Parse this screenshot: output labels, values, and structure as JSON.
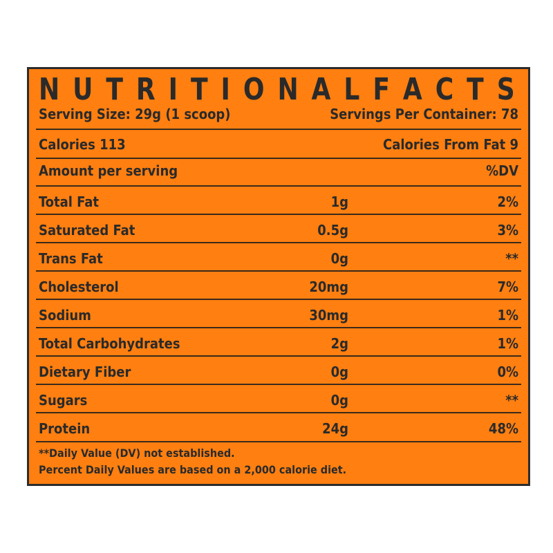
{
  "label": {
    "title_letters": [
      "N",
      "U",
      "T",
      "R",
      "I",
      "T",
      "I",
      "O",
      "N",
      "A",
      "L",
      "F",
      "A",
      "C",
      "T",
      "S"
    ],
    "serving_size": "Serving Size: 29g  (1 scoop)",
    "servings_per_container": "Servings Per Container: 78",
    "calories": "Calories 113",
    "calories_from_fat": "Calories From Fat 9",
    "amount_per_serving": "Amount per serving",
    "dv_header": "%DV",
    "rows": [
      {
        "name": "Total Fat",
        "amount": "1g",
        "dv": "2%"
      },
      {
        "name": "Saturated Fat",
        "amount": "0.5g",
        "dv": "3%"
      },
      {
        "name": "Trans Fat",
        "amount": "0g",
        "dv": "**"
      },
      {
        "name": "Cholesterol",
        "amount": "20mg",
        "dv": "7%"
      },
      {
        "name": "Sodium",
        "amount": "30mg",
        "dv": "1%"
      },
      {
        "name": "Total Carbohydrates",
        "amount": "2g",
        "dv": "1%"
      },
      {
        "name": "Dietary Fiber",
        "amount": "0g",
        "dv": "0%"
      },
      {
        "name": "Sugars",
        "amount": "0g",
        "dv": "**"
      },
      {
        "name": "Protein",
        "amount": "24g",
        "dv": "48%"
      }
    ],
    "footnote_1": "**Daily Value (DV) not established.",
    "footnote_2": "Percent Daily Values are based on a 2,000 calorie diet."
  },
  "colors": {
    "background": "#ff7f10",
    "text": "#2a2a2a",
    "border": "#2c2c2c"
  }
}
